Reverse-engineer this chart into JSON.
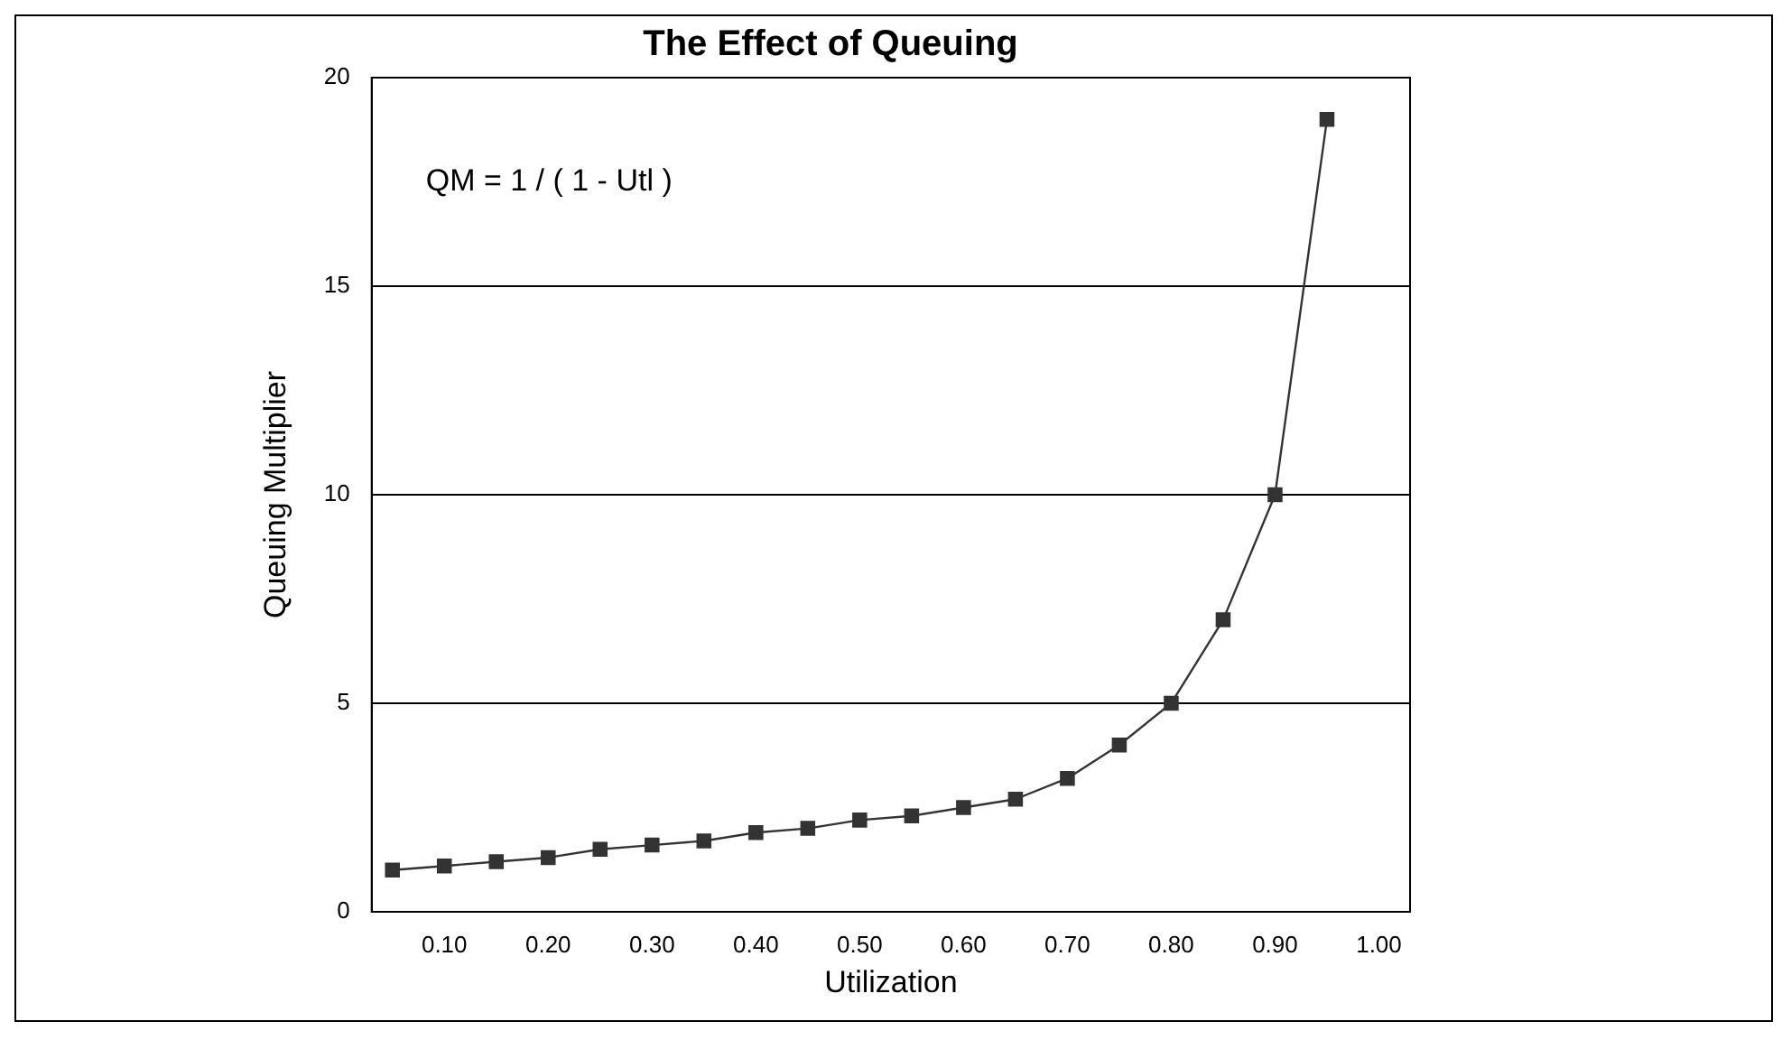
{
  "chart_data": {
    "type": "line",
    "title": "The Effect of Queuing",
    "xlabel": "Utilization",
    "ylabel": "Queuing Multiplier",
    "x": [
      0.05,
      0.1,
      0.15,
      0.2,
      0.25,
      0.3,
      0.35,
      0.4,
      0.45,
      0.5,
      0.55,
      0.6,
      0.65,
      0.7,
      0.75,
      0.8,
      0.85,
      0.9,
      0.95
    ],
    "series": [
      {
        "color": "#333333",
        "values": [
          1.0,
          1.1,
          1.2,
          1.3,
          1.5,
          1.6,
          1.7,
          1.9,
          2.0,
          2.2,
          2.3,
          2.5,
          2.7,
          3.2,
          4.0,
          5.0,
          7.0,
          10.0,
          19.0
        ]
      }
    ],
    "xlim": [
      0.03,
      1.03
    ],
    "xticks": [
      {
        "value": 0.1,
        "label": "0.10"
      },
      {
        "value": 0.2,
        "label": "0.20"
      },
      {
        "value": 0.3,
        "label": "0.30"
      },
      {
        "value": 0.4,
        "label": "0.40"
      },
      {
        "value": 0.5,
        "label": "0.50"
      },
      {
        "value": 0.6,
        "label": "0.60"
      },
      {
        "value": 0.7,
        "label": "0.70"
      },
      {
        "value": 0.8,
        "label": "0.80"
      },
      {
        "value": 0.9,
        "label": "0.90"
      },
      {
        "value": 1.0,
        "label": "1.00"
      }
    ],
    "ylim": [
      0,
      20
    ],
    "yticks": [
      0,
      5,
      10,
      15,
      20
    ],
    "grid": "y",
    "legend": false,
    "marker": "square",
    "line_style": "solid",
    "annotations": [
      "QM = 1 / ( 1 - Utl )"
    ]
  }
}
